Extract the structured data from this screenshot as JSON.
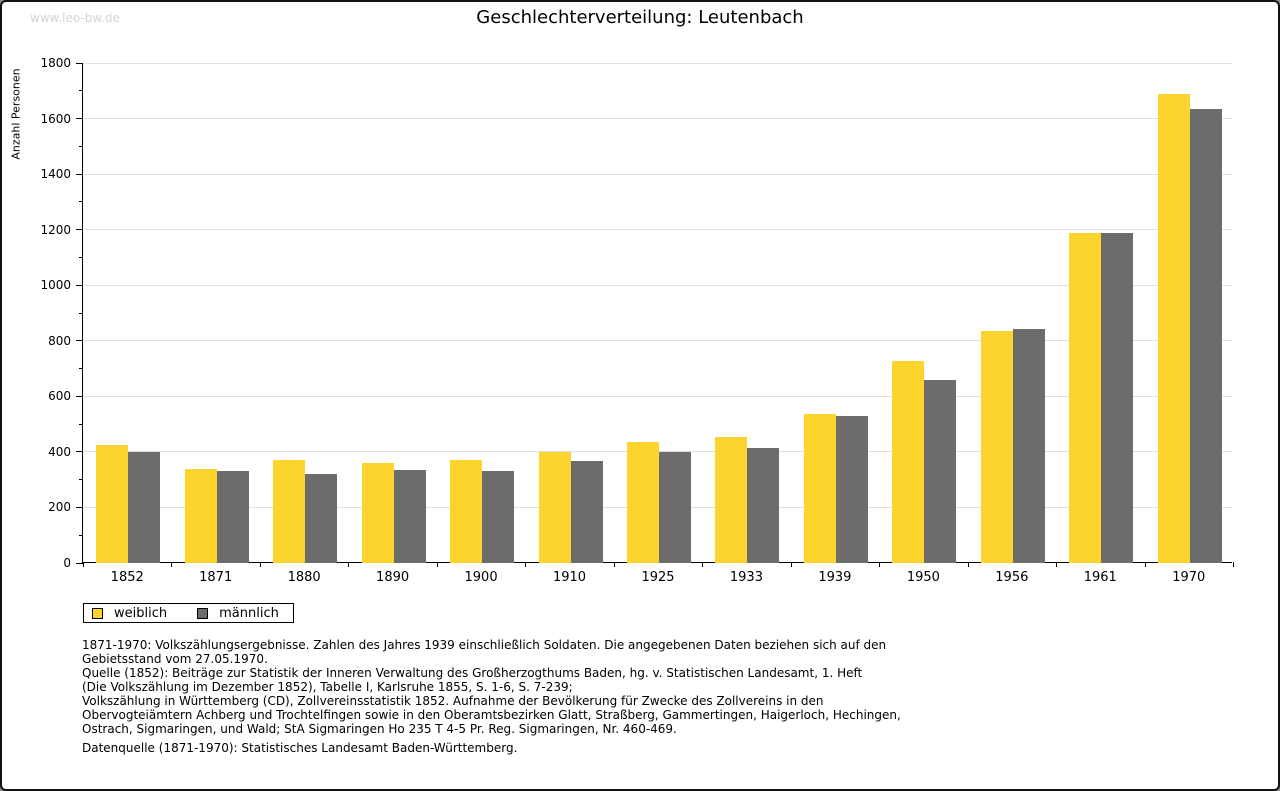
{
  "watermark": "www.leo-bw.de",
  "title": "Geschlechterverteilung: Leutenbach",
  "chart_data": {
    "type": "bar",
    "title": "Geschlechterverteilung: Leutenbach",
    "xlabel": "",
    "ylabel": "Anzahl Personen",
    "ylim": [
      0,
      1800
    ],
    "ytick_step": 200,
    "minor_tick_step": 100,
    "grid": true,
    "legend_position": "bottom-left",
    "categories": [
      "1852",
      "1871",
      "1880",
      "1890",
      "1900",
      "1910",
      "1925",
      "1933",
      "1939",
      "1950",
      "1956",
      "1961",
      "1970"
    ],
    "series": [
      {
        "name": "weiblich",
        "color": "#FCD42C",
        "values": [
          426,
          339,
          371,
          360,
          372,
          398,
          436,
          455,
          537,
          726,
          834,
          1188,
          1690
        ]
      },
      {
        "name": "männlich",
        "color": "#6C6C6C",
        "values": [
          398,
          331,
          322,
          336,
          330,
          368,
          401,
          415,
          531,
          658,
          843,
          1188,
          1636
        ]
      }
    ]
  },
  "legend": {
    "items": [
      {
        "label": "weiblich",
        "color": "#FCD42C"
      },
      {
        "label": "männlich",
        "color": "#6C6C6C"
      }
    ]
  },
  "footnotes": {
    "lines": [
      "1871-1970: Volkszählungsergebnisse. Zahlen des Jahres 1939 einschließlich Soldaten. Die angegebenen Daten beziehen sich auf den",
      "Gebietsstand vom 27.05.1970.",
      "Quelle (1852): Beiträge zur Statistik der Inneren Verwaltung des Großherzogthums Baden, hg. v. Statistischen Landesamt, 1. Heft",
      "(Die Volkszählung im Dezember 1852), Tabelle I, Karlsruhe 1855, S. 1-6, S. 7-239;",
      "Volkszählung in Württemberg (CD), Zollvereinsstatistik 1852. Aufnahme der Bevölkerung für Zwecke des Zollvereins in den",
      "Obervogteiämtern Achberg und Trochtelfingen sowie in den Oberamtsbezirken Glatt, Straßberg, Gammertingen, Haigerloch, Hechingen,",
      "Ostrach, Sigmaringen, und Wald; StA Sigmaringen Ho 235 T 4-5 Pr. Reg. Sigmaringen, Nr. 460-469."
    ],
    "datasource": "Datenquelle (1871-1970): Statistisches Landesamt Baden-Württemberg."
  },
  "colors": {
    "weiblich": "#FCD42C",
    "maennlich": "#6C6C6C",
    "gridline": "#e0e0e0",
    "axis": "#000000",
    "watermark": "#d4d4d4",
    "frame_border": "#111111"
  }
}
